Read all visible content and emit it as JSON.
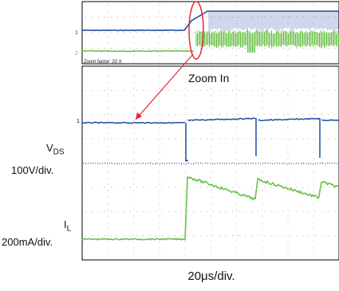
{
  "labels": {
    "zoom_in": "Zoom In",
    "zoom_factor": "Zoom factor: 20 X",
    "vds_name": "V",
    "vds_sub": "DS",
    "vds_scale": "100V/div.",
    "il_name": "I",
    "il_sub": "L",
    "il_scale": "200mA/div.",
    "timebase": "20μs/div.",
    "ch1_marker": "1",
    "ch2_marker": "2"
  },
  "colors": {
    "vds": "#1f4ea1",
    "il": "#6cc04a",
    "zoom_marker": "#e8262b",
    "border": "#000000",
    "grid": "#9a9a9a"
  },
  "chart_data": [
    {
      "type": "line",
      "panel": "overview",
      "series": [
        {
          "channel": "vds",
          "values": [
            [
              0,
              0.0
            ],
            [
              0.3,
              0.0
            ],
            [
              0.36,
              1.0
            ],
            [
              1,
              1.0
            ]
          ]
        },
        {
          "channel": "il",
          "values": [
            [
              0,
              0.0
            ],
            [
              0.34,
              0.0
            ],
            [
              0.4,
              0.6
            ],
            [
              1,
              0.45
            ]
          ]
        }
      ]
    },
    {
      "type": "line",
      "panel": "zoom",
      "xlabel": "20μs/div.",
      "series": [
        {
          "channel": "vds",
          "scale": "100V/div.",
          "values": [
            [
              0,
              0.0
            ],
            [
              2.6,
              0.0
            ],
            [
              2.62,
              -2.0
            ],
            [
              2.68,
              -3.0
            ],
            [
              3.9,
              -3.0
            ]
          ]
        },
        {
          "channel": "il",
          "scale": "200mA/div.",
          "values": [
            [
              0,
              0.0
            ],
            [
              2.6,
              0.0
            ],
            [
              2.65,
              2.3
            ],
            [
              3.0,
              1.7
            ],
            [
              4.0,
              1.2
            ]
          ]
        }
      ]
    }
  ]
}
